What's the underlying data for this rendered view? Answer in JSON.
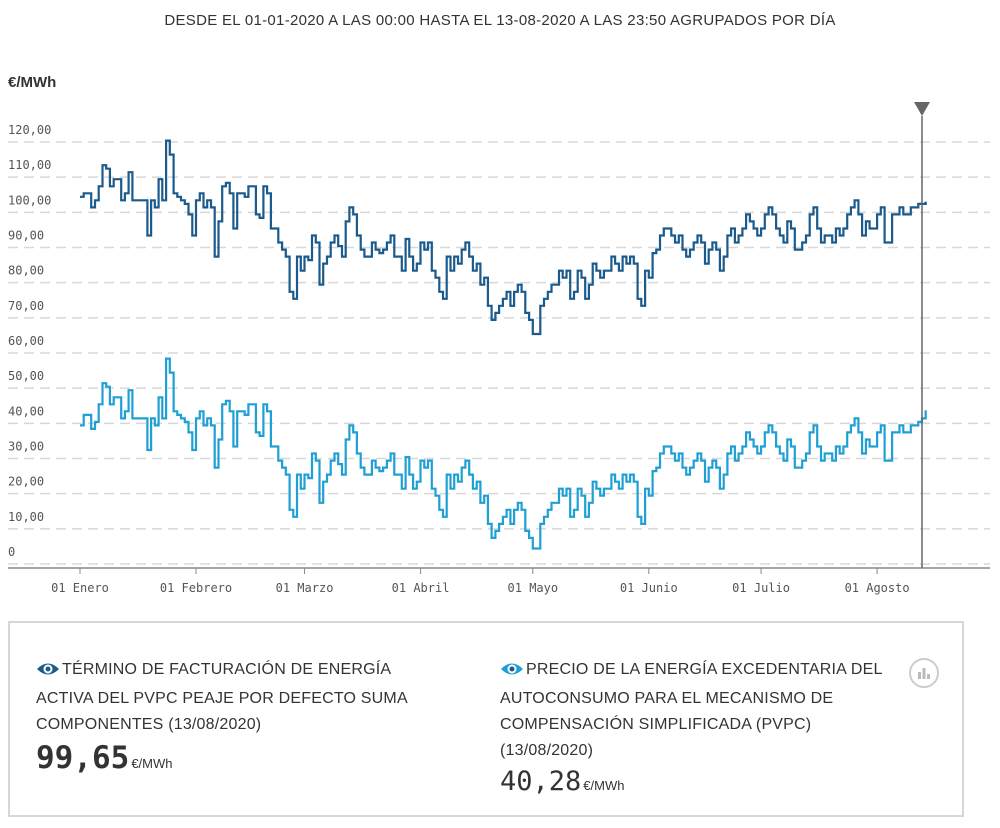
{
  "title": "DESDE EL 01-01-2020 A LAS 00:00 HASTA EL 13-08-2020 A LAS 23:50 AGRUPADOS POR DÍA",
  "unit_label": "€/MWh",
  "legend": {
    "series_a": {
      "label": "TÉRMINO DE FACTURACIÓN DE ENERGÍA ACTIVA DEL PVPC PEAJE POR DEFECTO SUMA COMPONENTES (13/08/2020)",
      "value": "99,65",
      "unit": "€/MWh"
    },
    "series_b": {
      "label": "PRECIO DE LA ENERGÍA EXCEDENTARIA DEL AUTOCONSUMO PARA EL MECANISMO DE COMPENSACIÓN SIMPLIFICADA (PVPC) (13/08/2020)",
      "value": "40,28",
      "unit": "€/MWh"
    },
    "icons": [
      "eye-icon",
      "eye-icon",
      "bar-chart-icon"
    ]
  },
  "colors": {
    "series_a": "#1a5a8c",
    "series_b": "#1ea0d4",
    "grid": "#d8d8d8",
    "cursor": "#666666",
    "eye": "#1a5a8c"
  },
  "chart_data": {
    "type": "line",
    "step": true,
    "ylim": [
      0,
      120
    ],
    "y_ticks": [
      "120,00",
      "110,00",
      "100,00",
      "90,00",
      "80,00",
      "70,00",
      "60,00",
      "50,00",
      "40,00",
      "30,00",
      "20,00",
      "10,00",
      "0"
    ],
    "x_ticks": [
      "01 Enero",
      "01 Febrero",
      "01 Marzo",
      "01 Abril",
      "01 Mayo",
      "01 Junio",
      "01 Julio",
      "01 Agosto"
    ],
    "x_tick_days": [
      1,
      32,
      61,
      92,
      122,
      153,
      183,
      214
    ],
    "x_range_days": [
      1,
      226
    ],
    "cursor_day": 226,
    "grid": true,
    "series": [
      {
        "key": "a",
        "values": [
          101,
          102,
          102,
          98,
          100,
          104,
          110,
          109,
          104,
          106,
          106,
          100,
          102,
          108,
          100,
          100,
          100,
          100,
          90,
          100,
          98,
          106,
          100,
          117,
          113,
          102,
          101,
          100,
          99,
          96,
          90,
          100,
          102,
          98,
          100,
          98,
          84,
          94,
          104,
          105,
          102,
          92,
          102,
          102,
          101,
          104,
          104,
          96,
          95,
          104,
          102,
          92,
          92,
          88,
          86,
          84,
          74,
          72,
          84,
          80,
          84,
          83,
          90,
          88,
          76,
          82,
          84,
          88,
          90,
          87,
          84,
          94,
          98,
          96,
          90,
          86,
          84,
          84,
          88,
          86,
          85,
          86,
          88,
          90,
          84,
          84,
          80,
          89,
          84,
          80,
          82,
          88,
          86,
          88,
          80,
          78,
          74,
          72,
          84,
          80,
          84,
          82,
          86,
          88,
          84,
          80,
          82,
          76,
          78,
          70,
          66,
          68,
          70,
          72,
          74,
          70,
          74,
          76,
          74,
          68,
          66,
          62,
          62,
          70,
          72,
          74,
          76,
          76,
          80,
          78,
          80,
          72,
          74,
          80,
          78,
          72,
          76,
          82,
          80,
          78,
          80,
          80,
          84,
          82,
          80,
          84,
          82,
          84,
          82,
          72,
          70,
          80,
          78,
          85,
          86,
          90,
          92,
          92,
          90,
          88,
          90,
          86,
          84,
          86,
          88,
          90,
          88,
          82,
          86,
          88,
          86,
          80,
          84,
          90,
          92,
          88,
          90,
          92,
          96,
          94,
          92,
          90,
          92,
          96,
          98,
          96,
          92,
          90,
          88,
          94,
          92,
          86,
          86,
          88,
          90,
          96,
          98,
          92,
          88,
          90,
          90,
          88,
          92,
          90,
          92,
          96,
          98,
          100,
          96,
          90,
          94,
          92,
          92,
          96,
          98,
          88,
          88,
          96,
          96,
          98,
          96,
          96,
          98,
          98,
          99,
          99,
          99.65
        ]
      },
      {
        "key": "b",
        "values": [
          36,
          39,
          39,
          35,
          37,
          42,
          48,
          47,
          42,
          44,
          44,
          38,
          40,
          46,
          38,
          38,
          38,
          38,
          29,
          38,
          36,
          44,
          38,
          55,
          51,
          40,
          39,
          38,
          37,
          34,
          29,
          38,
          40,
          36,
          38,
          36,
          24,
          32,
          42,
          43,
          40,
          30,
          40,
          40,
          39,
          42,
          42,
          34,
          33,
          42,
          40,
          30,
          30,
          26,
          24,
          22,
          12,
          10,
          22,
          18,
          22,
          21,
          28,
          26,
          14,
          20,
          22,
          26,
          28,
          25,
          22,
          32,
          36,
          34,
          28,
          24,
          22,
          22,
          26,
          24,
          23,
          24,
          26,
          28,
          22,
          22,
          18,
          27,
          22,
          18,
          20,
          26,
          24,
          26,
          18,
          16,
          12,
          10,
          22,
          18,
          22,
          20,
          24,
          26,
          22,
          18,
          20,
          14,
          16,
          8,
          4,
          6,
          8,
          10,
          12,
          8,
          12,
          14,
          12,
          6,
          4,
          1,
          1,
          8,
          10,
          12,
          14,
          14,
          18,
          16,
          18,
          10,
          12,
          18,
          16,
          10,
          14,
          20,
          18,
          16,
          18,
          18,
          22,
          20,
          18,
          22,
          20,
          22,
          20,
          10,
          8,
          18,
          16,
          23,
          24,
          28,
          30,
          30,
          28,
          26,
          28,
          24,
          22,
          24,
          26,
          28,
          26,
          20,
          24,
          26,
          24,
          18,
          22,
          28,
          30,
          26,
          28,
          30,
          34,
          32,
          30,
          28,
          30,
          34,
          36,
          34,
          30,
          28,
          26,
          32,
          30,
          24,
          24,
          26,
          28,
          34,
          36,
          30,
          26,
          28,
          28,
          26,
          30,
          28,
          30,
          34,
          36,
          38,
          34,
          28,
          32,
          30,
          30,
          34,
          36,
          26,
          26,
          34,
          34,
          36,
          34,
          34,
          36,
          36,
          37,
          38,
          40.28
        ]
      }
    ]
  }
}
